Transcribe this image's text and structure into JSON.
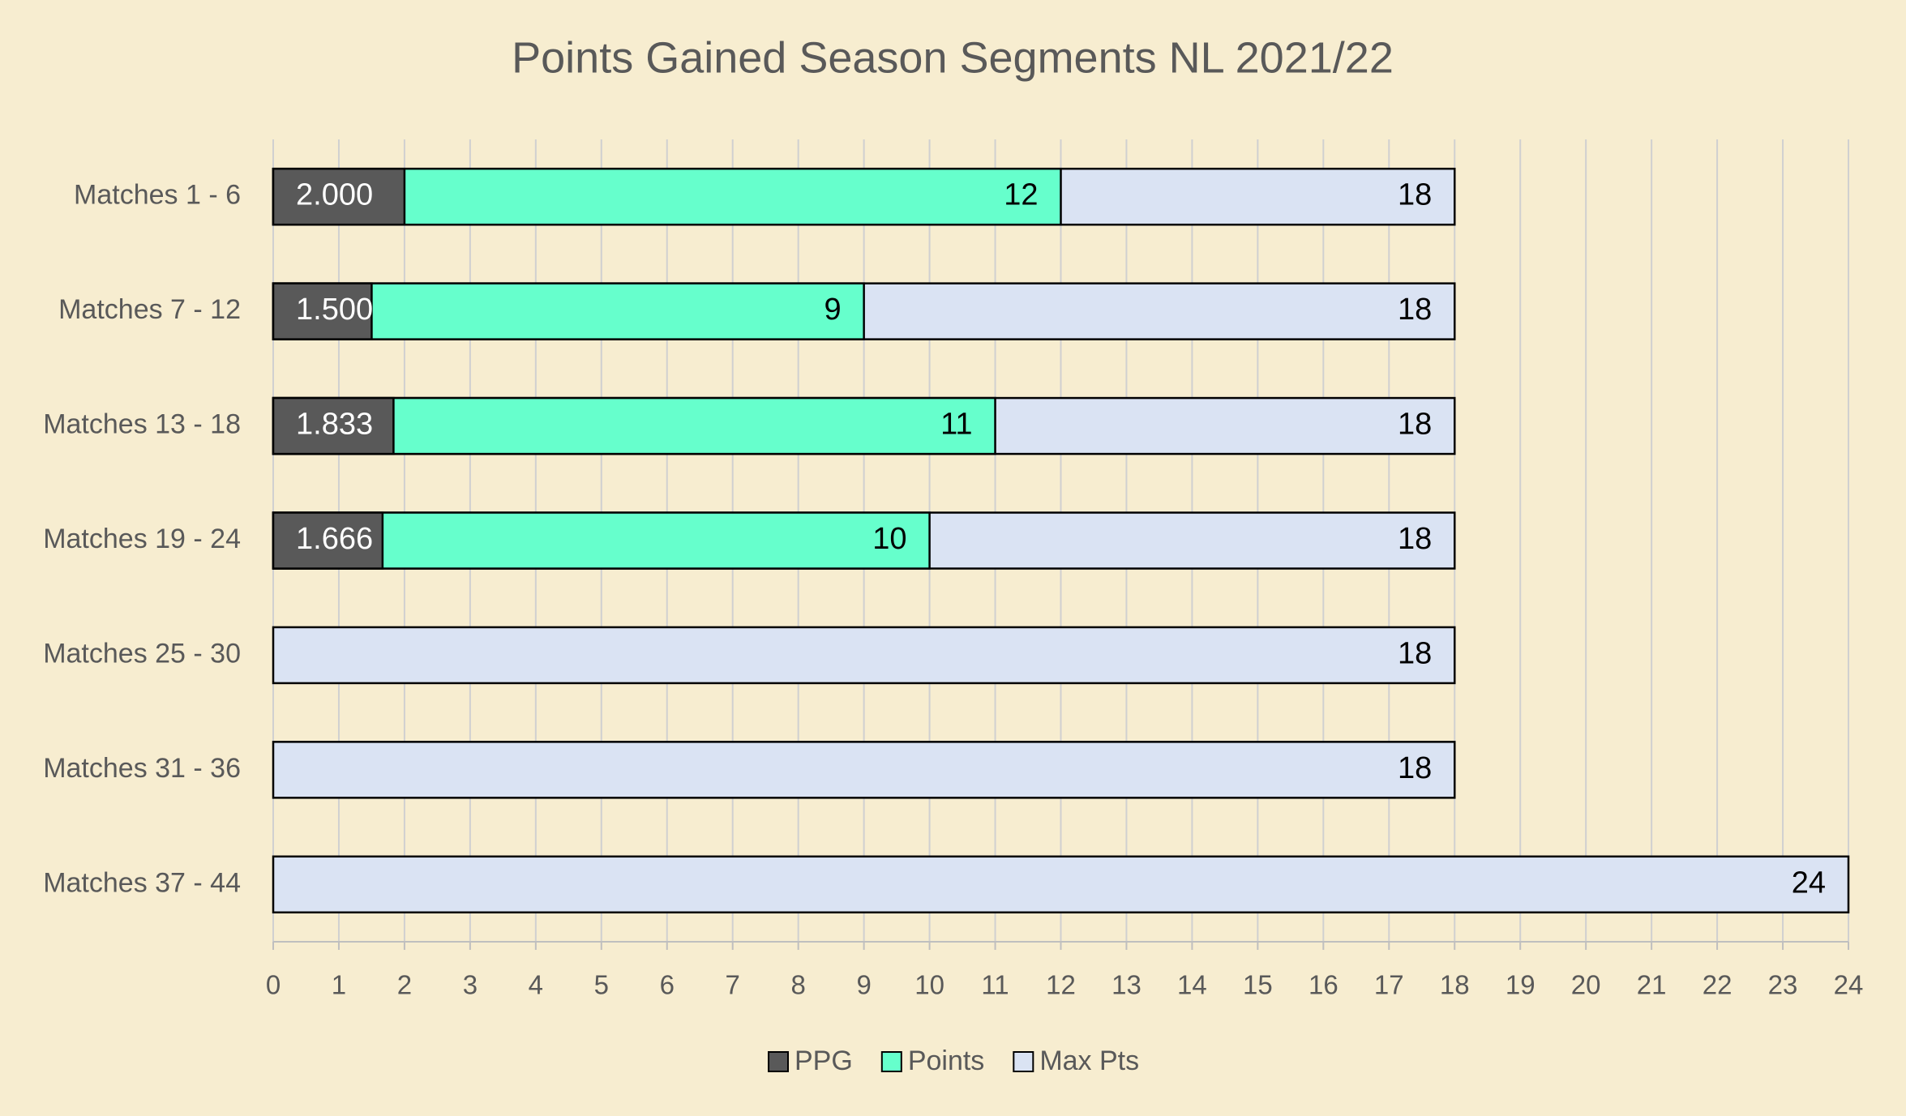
{
  "chart_data": {
    "type": "bar",
    "orientation": "horizontal",
    "overlap": true,
    "title": "Points Gained Season Segments NL 2021/22",
    "categories": [
      "Matches 1 - 6",
      "Matches 7 - 12",
      "Matches 13 - 18",
      "Matches 19 - 24",
      "Matches 25 - 30",
      "Matches 31 - 36",
      "Matches 37 - 44"
    ],
    "series": [
      {
        "name": "Max Pts",
        "color": "#dae3f3",
        "values": [
          18,
          18,
          18,
          18,
          18,
          18,
          24
        ]
      },
      {
        "name": "Points",
        "color": "#66ffcc",
        "values": [
          12,
          9,
          11,
          10,
          null,
          null,
          null
        ]
      },
      {
        "name": "PPG",
        "color": "#595959",
        "values": [
          2,
          1.5,
          1.833,
          1.666,
          null,
          null,
          null
        ],
        "value_labels": [
          "2.000",
          "1.500",
          "1.833",
          "1.666",
          null,
          null,
          null
        ]
      }
    ],
    "legend_order": [
      "PPG",
      "Points",
      "Max Pts"
    ],
    "xlim": [
      0,
      24
    ],
    "xticks": [
      0,
      1,
      2,
      3,
      4,
      5,
      6,
      7,
      8,
      9,
      10,
      11,
      12,
      13,
      14,
      15,
      16,
      17,
      18,
      19,
      20,
      21,
      22,
      23,
      24
    ],
    "grid": true,
    "legend": "bottom"
  }
}
